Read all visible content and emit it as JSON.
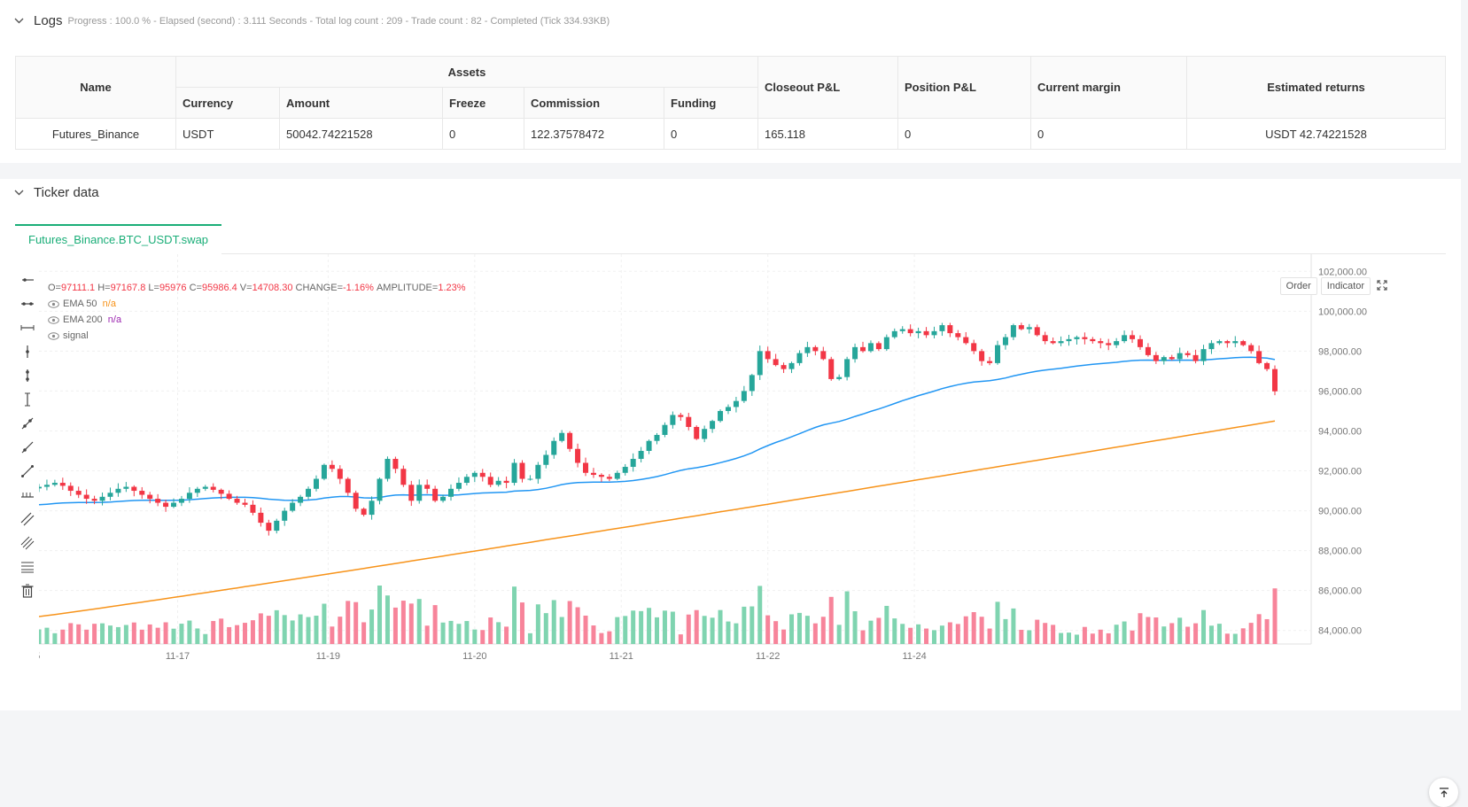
{
  "logs": {
    "title": "Logs",
    "meta": "Progress : 100.0 % - Elapsed (second) : 3.111  Seconds - Total log count : 209 - Trade count : 82 - Completed (Tick 334.93KB)"
  },
  "table": {
    "group_header": "Assets",
    "headers": {
      "name": "Name",
      "currency": "Currency",
      "amount": "Amount",
      "freeze": "Freeze",
      "commission": "Commission",
      "funding": "Funding",
      "closeout": "Closeout P&L",
      "position": "Position P&L",
      "margin": "Current margin",
      "returns": "Estimated returns"
    },
    "row": {
      "name": "Futures_Binance",
      "currency": "USDT",
      "amount": "50042.74221528",
      "freeze": "0",
      "commission": "122.37578472",
      "funding": "0",
      "closeout": "165.118",
      "position": "0",
      "margin": "0",
      "returns": "USDT 42.74221528"
    }
  },
  "ticker": {
    "title": "Ticker data",
    "tab": "Futures_Binance.BTC_USDT.swap",
    "buttons": {
      "order": "Order",
      "indicator": "Indicator"
    },
    "ohlc": {
      "o_label": "O=",
      "o": "97111.1",
      "h_label": "H=",
      "h": "97167.8",
      "l_label": "L=",
      "l": "95976",
      "c_label": "C=",
      "c": "95986.4",
      "v_label": "V=",
      "v": "14708.30",
      "change_label": "CHANGE=",
      "change": "-1.16%",
      "amp_label": "AMPLITUDE=",
      "amp": "1.23%"
    },
    "legend": [
      {
        "name": "EMA 50",
        "value": "n/a",
        "color": "#f7931a"
      },
      {
        "name": "EMA 200",
        "value": "n/a",
        "color": "#9c27b0"
      },
      {
        "name": "signal",
        "value": ""
      }
    ],
    "toolbar_icons": [
      "horizontal-ray-icon",
      "horizontal-segment-icon",
      "horizontal-line-icon",
      "vertical-line-icon",
      "vertical-segment-icon",
      "vertical-ray-icon",
      "trend-line-icon",
      "trend-ray-icon",
      "extended-line-icon",
      "price-range-icon",
      "parallel-channel-icon",
      "fib-channel-icon",
      "fib-retracement-icon",
      "delete-icon"
    ]
  },
  "chart_data": {
    "type": "candlestick",
    "colors": {
      "up": "#26a69a",
      "down": "#f23645",
      "ema50": "#2196f3",
      "ema200": "#f7931a"
    },
    "y_ticks": [
      "102,000.00",
      "100,000.00",
      "98,000.00",
      "96,000.00",
      "94,000.00",
      "92,000.00",
      "90,000.00",
      "88,000.00",
      "86,000.00",
      "84,000.00"
    ],
    "ylim": [
      83500,
      102500
    ],
    "x_ticks": [
      {
        "label": "5",
        "index": -0.2
      },
      {
        "label": "11-17",
        "index": 17.5
      },
      {
        "label": "11-19",
        "index": 36.5
      },
      {
        "label": "11-20",
        "index": 55
      },
      {
        "label": "11-21",
        "index": 73.5
      },
      {
        "label": "11-22",
        "index": 92
      },
      {
        "label": "11-24",
        "index": 110.5
      }
    ],
    "closes": [
      91200,
      91300,
      91400,
      91250,
      91000,
      90800,
      90600,
      90500,
      90700,
      90900,
      91100,
      91200,
      91000,
      90800,
      90600,
      90400,
      90200,
      90400,
      90600,
      90900,
      91100,
      91200,
      91050,
      90850,
      90600,
      90400,
      90300,
      89900,
      89400,
      89000,
      89500,
      90000,
      90400,
      90700,
      91100,
      91600,
      92300,
      92100,
      91600,
      90900,
      90100,
      89800,
      90500,
      91600,
      92600,
      92100,
      91300,
      90500,
      91300,
      91100,
      90500,
      90700,
      91100,
      91400,
      91700,
      91900,
      91700,
      91300,
      91500,
      91400,
      92400,
      91600,
      91600,
      92300,
      92800,
      93500,
      93900,
      93100,
      92400,
      91900,
      91800,
      91700,
      91600,
      91900,
      92200,
      92600,
      93000,
      93500,
      93800,
      94300,
      94800,
      94700,
      94200,
      93600,
      94100,
      94500,
      95000,
      95200,
      95500,
      96000,
      96800,
      98000,
      97600,
      97300,
      97100,
      97400,
      97900,
      98200,
      98000,
      97600,
      96600,
      96700,
      97600,
      98200,
      98000,
      98400,
      98100,
      98700,
      99000,
      99100,
      98900,
      99000,
      98800,
      99000,
      99300,
      98900,
      98700,
      98400,
      98000,
      97500,
      97400,
      98300,
      98700,
      99300,
      99100,
      99200,
      98800,
      98500,
      98400,
      98500,
      98600,
      98700,
      98600,
      98500,
      98400,
      98300,
      98500,
      98800,
      98600,
      98200,
      97800,
      97500,
      97700,
      97600,
      97900,
      97800,
      97500,
      98100,
      98400,
      98500,
      98400,
      98500,
      98300,
      98000,
      97400,
      97100,
      95986
    ],
    "volume_note": "relative heights read from volume bars"
  }
}
